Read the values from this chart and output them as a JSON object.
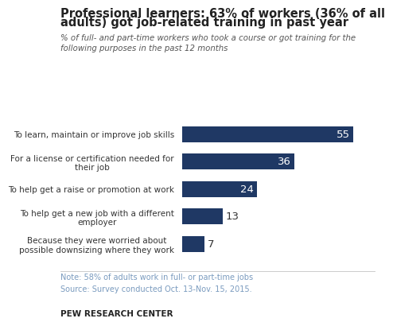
{
  "title_line1": "Professional learners: 63% of workers (36% of all",
  "title_line2": "adults) got job-related training in past year",
  "subtitle": "% of full- and part-time workers who took a course or got training for the\nfollowing purposes in the past 12 months",
  "categories": [
    "To learn, maintain or improve job skills",
    "For a license or certification needed for\ntheir job",
    "To help get a raise or promotion at work",
    "To help get a new job with a different\nemployer",
    "Because they were worried about\npossible downsizing where they work"
  ],
  "values": [
    55,
    36,
    24,
    13,
    7
  ],
  "bar_color": "#1F3864",
  "value_color_inside": "#ffffff",
  "value_color_outside": "#333333",
  "note": "Note: 58% of adults work in full- or part-time jobs",
  "source": "Source: Survey conducted Oct. 13-Nov. 15, 2015.",
  "branding": "PEW RESEARCH CENTER",
  "note_color": "#7a9bbf",
  "source_color": "#7a9bbf",
  "branding_color": "#222222",
  "background_color": "#ffffff",
  "xlim": [
    0,
    62
  ]
}
